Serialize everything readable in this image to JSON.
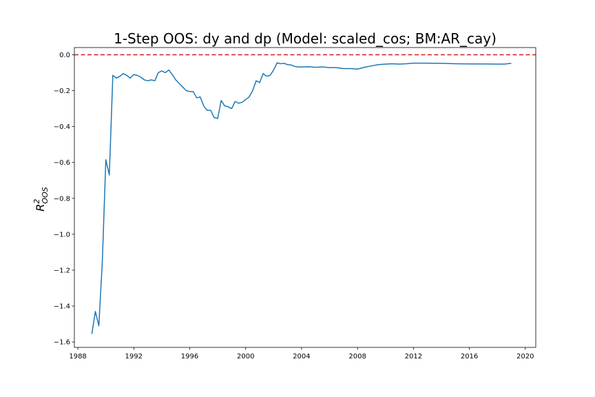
{
  "chart_data": {
    "type": "line",
    "title": "1-Step OOS: dy and dp (Model: scaled_cos; BM:AR_cay)",
    "xlabel": "",
    "ylabel": "R",
    "ylabel_superscript": "2",
    "ylabel_subscript": "OOS",
    "xlim": [
      1987.75,
      2020.75
    ],
    "ylim": [
      -1.63,
      0.04
    ],
    "x_ticks": [
      1988,
      1992,
      1996,
      2000,
      2004,
      2008,
      2012,
      2016,
      2020
    ],
    "x_tick_labels": [
      "1988",
      "1992",
      "1996",
      "2000",
      "2004",
      "2008",
      "2012",
      "2016",
      "2020"
    ],
    "y_ticks": [
      0.0,
      -0.2,
      -0.4,
      -0.6,
      -0.8,
      -1.0,
      -1.2,
      -1.4,
      -1.6
    ],
    "y_tick_labels": [
      "0.0",
      "−0.2",
      "−0.4",
      "−0.6",
      "−0.8",
      "−1.0",
      "−1.2",
      "−1.4",
      "−1.6"
    ],
    "grid": false,
    "reference_line": {
      "y": 0.0,
      "color": "#d62728",
      "style": "dashed"
    },
    "series": [
      {
        "color": "#1f77b4",
        "x": [
          1989.0,
          1989.25,
          1989.5,
          1989.75,
          1990.0,
          1990.25,
          1990.5,
          1990.75,
          1991.0,
          1991.25,
          1991.5,
          1991.75,
          1992.0,
          1992.25,
          1992.5,
          1992.75,
          1993.0,
          1993.25,
          1993.5,
          1993.75,
          1994.0,
          1994.25,
          1994.5,
          1994.75,
          1995.0,
          1995.25,
          1995.5,
          1995.75,
          1996.0,
          1996.25,
          1996.5,
          1996.75,
          1997.0,
          1997.25,
          1997.5,
          1997.75,
          1998.0,
          1998.25,
          1998.5,
          1998.75,
          1999.0,
          1999.25,
          1999.5,
          1999.75,
          2000.0,
          2000.25,
          2000.5,
          2000.75,
          2001.0,
          2001.25,
          2001.5,
          2001.75,
          2002.0,
          2002.25,
          2002.5,
          2002.75,
          2003.0,
          2003.25,
          2003.5,
          2003.75,
          2004.0,
          2004.5,
          2005.0,
          2005.5,
          2006.0,
          2006.5,
          2007.0,
          2007.5,
          2008.0,
          2008.5,
          2009.0,
          2009.5,
          2010.0,
          2010.5,
          2011.0,
          2011.5,
          2012.0,
          2013.0,
          2014.0,
          2015.0,
          2016.0,
          2017.0,
          2018.0,
          2018.5,
          2019.0
        ],
        "values": [
          -1.555,
          -1.43,
          -1.51,
          -1.15,
          -0.585,
          -0.67,
          -0.115,
          -0.13,
          -0.12,
          -0.105,
          -0.115,
          -0.13,
          -0.11,
          -0.115,
          -0.125,
          -0.14,
          -0.145,
          -0.14,
          -0.145,
          -0.1,
          -0.09,
          -0.1,
          -0.085,
          -0.11,
          -0.14,
          -0.16,
          -0.18,
          -0.2,
          -0.205,
          -0.205,
          -0.24,
          -0.235,
          -0.285,
          -0.31,
          -0.31,
          -0.35,
          -0.355,
          -0.255,
          -0.285,
          -0.29,
          -0.3,
          -0.26,
          -0.27,
          -0.265,
          -0.25,
          -0.235,
          -0.2,
          -0.145,
          -0.155,
          -0.105,
          -0.12,
          -0.115,
          -0.085,
          -0.045,
          -0.05,
          -0.048,
          -0.055,
          -0.057,
          -0.065,
          -0.068,
          -0.068,
          -0.067,
          -0.07,
          -0.068,
          -0.072,
          -0.072,
          -0.077,
          -0.077,
          -0.08,
          -0.07,
          -0.062,
          -0.055,
          -0.052,
          -0.05,
          -0.052,
          -0.05,
          -0.047,
          -0.047,
          -0.048,
          -0.05,
          -0.051,
          -0.051,
          -0.052,
          -0.052,
          -0.048
        ]
      }
    ]
  }
}
